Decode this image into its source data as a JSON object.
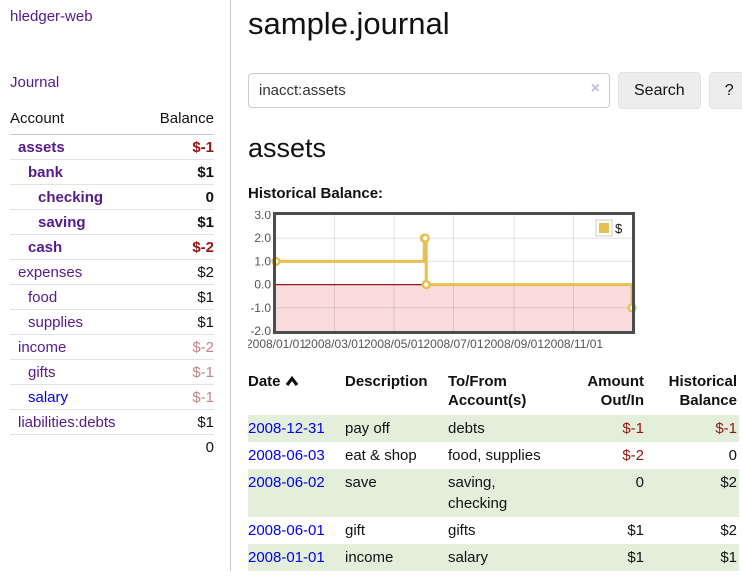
{
  "sidebar": {
    "app_title": "hledger-web",
    "journal_link": "Journal",
    "accounts": {
      "columns": [
        "Account",
        "Balance"
      ],
      "rows": [
        {
          "name": "assets",
          "depth": 0,
          "bold": true,
          "link": "purple",
          "balance": "$-1",
          "balance_class": "neg"
        },
        {
          "name": "bank",
          "depth": 1,
          "bold": true,
          "link": "purple",
          "balance": "$1",
          "balance_class": ""
        },
        {
          "name": "checking",
          "depth": 2,
          "bold": true,
          "link": "purple",
          "balance": "0",
          "balance_class": ""
        },
        {
          "name": "saving",
          "depth": 2,
          "bold": true,
          "link": "purple",
          "balance": "$1",
          "balance_class": ""
        },
        {
          "name": "cash",
          "depth": 1,
          "bold": true,
          "link": "purple",
          "balance": "$-2",
          "balance_class": "neg"
        },
        {
          "name": "expenses",
          "depth": 0,
          "bold": false,
          "link": "purple",
          "balance": "$2",
          "balance_class": ""
        },
        {
          "name": "food",
          "depth": 1,
          "bold": false,
          "link": "purple",
          "balance": "$1",
          "balance_class": ""
        },
        {
          "name": "supplies",
          "depth": 1,
          "bold": false,
          "link": "purple",
          "balance": "$1",
          "balance_class": ""
        },
        {
          "name": "income",
          "depth": 0,
          "bold": false,
          "link": "purple",
          "balance": "$-2",
          "balance_class": "soft"
        },
        {
          "name": "gifts",
          "depth": 1,
          "bold": false,
          "link": "purple",
          "balance": "$-1",
          "balance_class": "soft"
        },
        {
          "name": "salary",
          "depth": 1,
          "bold": false,
          "link": "blue",
          "balance": "$-1",
          "balance_class": "soft"
        },
        {
          "name": "liabilities:debts",
          "depth": 0,
          "bold": false,
          "link": "purple",
          "balance": "$1",
          "balance_class": ""
        }
      ],
      "total": "0"
    }
  },
  "main": {
    "title": "sample.journal",
    "search": {
      "value": "inacct:assets",
      "clear_icon": "×",
      "button_label": "Search",
      "help_label": "?"
    },
    "account_heading": "assets",
    "chart_label": "Historical Balance:"
  },
  "chart_data": {
    "type": "line",
    "title": "Historical Balance",
    "step": true,
    "series": [
      {
        "name": "$",
        "color": "#e6c050",
        "legend_box_border": "#cccccc",
        "points": [
          {
            "x": "2008-01-01",
            "y": 1
          },
          {
            "x": "2008-06-01",
            "y": 2
          },
          {
            "x": "2008-06-02",
            "y": 2
          },
          {
            "x": "2008-06-03",
            "y": 0
          },
          {
            "x": "2008-12-31",
            "y": -1
          }
        ]
      }
    ],
    "x_start": "2008-01-01",
    "x_end": "2008-12-31",
    "xticks": [
      {
        "label": "2008/01/01",
        "date": "2008-01-01"
      },
      {
        "label": "2008/03/01",
        "date": "2008-03-01"
      },
      {
        "label": "2008/05/01",
        "date": "2008-05-01"
      },
      {
        "label": "2008/07/01",
        "date": "2008-07-01"
      },
      {
        "label": "2008/09/01",
        "date": "2008-09-01"
      },
      {
        "label": "2008/11/01",
        "date": "2008-11-01"
      }
    ],
    "yticks": [
      3.0,
      2.0,
      1.0,
      0.0,
      -1.0,
      -2.0
    ],
    "ylim": [
      -2,
      3
    ],
    "grid": true,
    "legend_position": "top-right",
    "negative_fill": "#fbdcdc",
    "zero_line_color": "#8b1a1a",
    "border_color": "#4a4c4e",
    "grid_color": "rgba(0,0,0,0.11)"
  },
  "register": {
    "columns": [
      "Date",
      "Description",
      "To/From Account(s)",
      "Amount Out/In",
      "Historical Balance"
    ],
    "sort_icon": "chevron-up",
    "rows": [
      {
        "date": "2008-12-31",
        "description": "pay off",
        "accounts": "debts",
        "amount": "$-1",
        "amount_class": "neg",
        "balance": "$-1",
        "balance_class": "neg",
        "highlight": true
      },
      {
        "date": "2008-06-03",
        "description": "eat & shop",
        "accounts": "food, supplies",
        "amount": "$-2",
        "amount_class": "neg",
        "balance": "0",
        "balance_class": "",
        "highlight": false
      },
      {
        "date": "2008-06-02",
        "description": "save",
        "accounts": "saving, checking",
        "amount": "0",
        "amount_class": "",
        "balance": "$2",
        "balance_class": "",
        "highlight": true
      },
      {
        "date": "2008-06-01",
        "description": "gift",
        "accounts": "gifts",
        "amount": "$1",
        "amount_class": "",
        "balance": "$2",
        "balance_class": "",
        "highlight": false
      },
      {
        "date": "2008-01-01",
        "description": "income",
        "accounts": "salary",
        "amount": "$1",
        "amount_class": "",
        "balance": "$1",
        "balance_class": "",
        "highlight": true
      }
    ]
  }
}
